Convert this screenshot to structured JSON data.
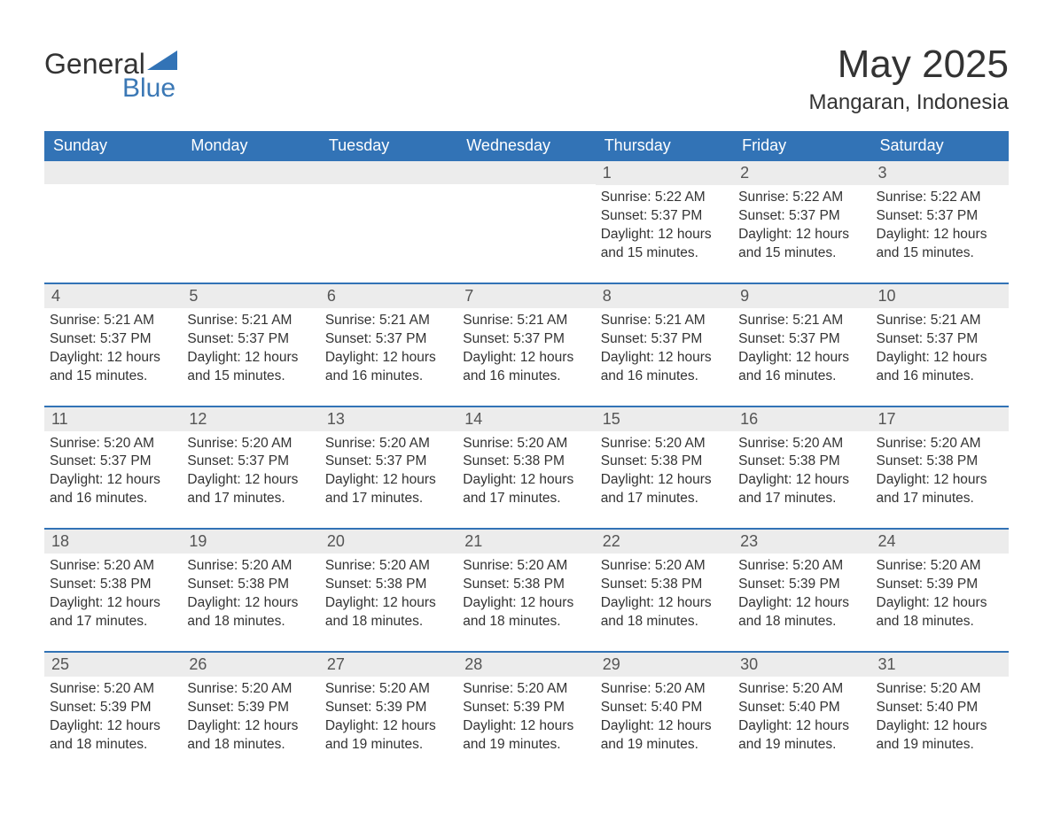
{
  "brand": {
    "word1": "General",
    "word2": "Blue",
    "text_color": "#333333",
    "accent_color": "#3b78b5",
    "triangle_color": "#3273b6"
  },
  "title": {
    "month_year": "May 2025",
    "location": "Mangaran, Indonesia"
  },
  "colors": {
    "header_bg": "#3273b6",
    "header_text": "#ffffff",
    "daynum_bg": "#ececec",
    "daynum_text": "#555555",
    "body_text": "#333333",
    "week_divider": "#3273b6",
    "page_bg": "#ffffff"
  },
  "dow": [
    "Sunday",
    "Monday",
    "Tuesday",
    "Wednesday",
    "Thursday",
    "Friday",
    "Saturday"
  ],
  "labels": {
    "sunrise_prefix": "Sunrise: ",
    "sunset_prefix": "Sunset: ",
    "daylight_prefix": "Daylight: "
  },
  "weeks": [
    [
      {
        "n": "",
        "sunrise": "",
        "sunset": "",
        "daylight": ""
      },
      {
        "n": "",
        "sunrise": "",
        "sunset": "",
        "daylight": ""
      },
      {
        "n": "",
        "sunrise": "",
        "sunset": "",
        "daylight": ""
      },
      {
        "n": "",
        "sunrise": "",
        "sunset": "",
        "daylight": ""
      },
      {
        "n": "1",
        "sunrise": "5:22 AM",
        "sunset": "5:37 PM",
        "daylight": "12 hours and 15 minutes."
      },
      {
        "n": "2",
        "sunrise": "5:22 AM",
        "sunset": "5:37 PM",
        "daylight": "12 hours and 15 minutes."
      },
      {
        "n": "3",
        "sunrise": "5:22 AM",
        "sunset": "5:37 PM",
        "daylight": "12 hours and 15 minutes."
      }
    ],
    [
      {
        "n": "4",
        "sunrise": "5:21 AM",
        "sunset": "5:37 PM",
        "daylight": "12 hours and 15 minutes."
      },
      {
        "n": "5",
        "sunrise": "5:21 AM",
        "sunset": "5:37 PM",
        "daylight": "12 hours and 15 minutes."
      },
      {
        "n": "6",
        "sunrise": "5:21 AM",
        "sunset": "5:37 PM",
        "daylight": "12 hours and 16 minutes."
      },
      {
        "n": "7",
        "sunrise": "5:21 AM",
        "sunset": "5:37 PM",
        "daylight": "12 hours and 16 minutes."
      },
      {
        "n": "8",
        "sunrise": "5:21 AM",
        "sunset": "5:37 PM",
        "daylight": "12 hours and 16 minutes."
      },
      {
        "n": "9",
        "sunrise": "5:21 AM",
        "sunset": "5:37 PM",
        "daylight": "12 hours and 16 minutes."
      },
      {
        "n": "10",
        "sunrise": "5:21 AM",
        "sunset": "5:37 PM",
        "daylight": "12 hours and 16 minutes."
      }
    ],
    [
      {
        "n": "11",
        "sunrise": "5:20 AM",
        "sunset": "5:37 PM",
        "daylight": "12 hours and 16 minutes."
      },
      {
        "n": "12",
        "sunrise": "5:20 AM",
        "sunset": "5:37 PM",
        "daylight": "12 hours and 17 minutes."
      },
      {
        "n": "13",
        "sunrise": "5:20 AM",
        "sunset": "5:37 PM",
        "daylight": "12 hours and 17 minutes."
      },
      {
        "n": "14",
        "sunrise": "5:20 AM",
        "sunset": "5:38 PM",
        "daylight": "12 hours and 17 minutes."
      },
      {
        "n": "15",
        "sunrise": "5:20 AM",
        "sunset": "5:38 PM",
        "daylight": "12 hours and 17 minutes."
      },
      {
        "n": "16",
        "sunrise": "5:20 AM",
        "sunset": "5:38 PM",
        "daylight": "12 hours and 17 minutes."
      },
      {
        "n": "17",
        "sunrise": "5:20 AM",
        "sunset": "5:38 PM",
        "daylight": "12 hours and 17 minutes."
      }
    ],
    [
      {
        "n": "18",
        "sunrise": "5:20 AM",
        "sunset": "5:38 PM",
        "daylight": "12 hours and 17 minutes."
      },
      {
        "n": "19",
        "sunrise": "5:20 AM",
        "sunset": "5:38 PM",
        "daylight": "12 hours and 18 minutes."
      },
      {
        "n": "20",
        "sunrise": "5:20 AM",
        "sunset": "5:38 PM",
        "daylight": "12 hours and 18 minutes."
      },
      {
        "n": "21",
        "sunrise": "5:20 AM",
        "sunset": "5:38 PM",
        "daylight": "12 hours and 18 minutes."
      },
      {
        "n": "22",
        "sunrise": "5:20 AM",
        "sunset": "5:38 PM",
        "daylight": "12 hours and 18 minutes."
      },
      {
        "n": "23",
        "sunrise": "5:20 AM",
        "sunset": "5:39 PM",
        "daylight": "12 hours and 18 minutes."
      },
      {
        "n": "24",
        "sunrise": "5:20 AM",
        "sunset": "5:39 PM",
        "daylight": "12 hours and 18 minutes."
      }
    ],
    [
      {
        "n": "25",
        "sunrise": "5:20 AM",
        "sunset": "5:39 PM",
        "daylight": "12 hours and 18 minutes."
      },
      {
        "n": "26",
        "sunrise": "5:20 AM",
        "sunset": "5:39 PM",
        "daylight": "12 hours and 18 minutes."
      },
      {
        "n": "27",
        "sunrise": "5:20 AM",
        "sunset": "5:39 PM",
        "daylight": "12 hours and 19 minutes."
      },
      {
        "n": "28",
        "sunrise": "5:20 AM",
        "sunset": "5:39 PM",
        "daylight": "12 hours and 19 minutes."
      },
      {
        "n": "29",
        "sunrise": "5:20 AM",
        "sunset": "5:40 PM",
        "daylight": "12 hours and 19 minutes."
      },
      {
        "n": "30",
        "sunrise": "5:20 AM",
        "sunset": "5:40 PM",
        "daylight": "12 hours and 19 minutes."
      },
      {
        "n": "31",
        "sunrise": "5:20 AM",
        "sunset": "5:40 PM",
        "daylight": "12 hours and 19 minutes."
      }
    ]
  ]
}
